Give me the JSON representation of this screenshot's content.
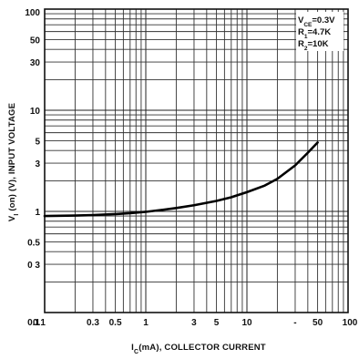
{
  "chart_data": {
    "type": "line",
    "title": "",
    "xlabel": "I",
    "xlabel_sub": "C",
    "xlabel_rest": "(mA), COLLECTOR CURRENT",
    "ylabel": "V",
    "ylabel_sub": "I",
    "ylabel_rest": " (on) (V), INPUT VOLTAGE",
    "x_scale": "log",
    "y_scale": "log",
    "xlim": [
      0.1,
      100
    ],
    "ylim": [
      0.1,
      100
    ],
    "grid": true,
    "x_ticks": [
      {
        "value": 0.1,
        "label": "0.1"
      },
      {
        "value": 0.3,
        "label": "0.3"
      },
      {
        "value": 0.5,
        "label": "0.5"
      },
      {
        "value": 1,
        "label": "1"
      },
      {
        "value": 3,
        "label": "3"
      },
      {
        "value": 5,
        "label": "5"
      },
      {
        "value": 10,
        "label": "10"
      },
      {
        "value": 30,
        "label": "-"
      },
      {
        "value": 50,
        "label": "50"
      },
      {
        "value": 100,
        "label": "100"
      }
    ],
    "y_ticks": [
      {
        "value": 100,
        "label": "100"
      },
      {
        "value": 50,
        "label": "50"
      },
      {
        "value": 30,
        "label": "30"
      },
      {
        "value": 10,
        "label": "10"
      },
      {
        "value": 5,
        "label": "5"
      },
      {
        "value": 3,
        "label": "3"
      },
      {
        "value": 1,
        "label": "1"
      },
      {
        "value": 0.5,
        "label": "0.5"
      },
      {
        "value": 0.3,
        "label": "0 3"
      },
      {
        "value": 0.1,
        "label": "0.1"
      }
    ],
    "annotations": [
      {
        "main": "V",
        "sub": "CE",
        "rest": "=0.3V"
      },
      {
        "main": "R",
        "sub": "1",
        "rest": "=4.7K"
      },
      {
        "main": "R",
        "sub": "2",
        "rest": "=10K"
      }
    ],
    "series": [
      {
        "x": [
          0.1,
          0.2,
          0.3,
          0.5,
          0.7,
          1,
          1.5,
          2,
          3,
          5,
          7,
          10,
          15,
          20,
          30,
          40,
          50
        ],
        "y": [
          0.9,
          0.91,
          0.92,
          0.94,
          0.96,
          0.99,
          1.04,
          1.08,
          1.15,
          1.27,
          1.38,
          1.55,
          1.8,
          2.1,
          2.85,
          3.8,
          4.8
        ]
      }
    ]
  }
}
